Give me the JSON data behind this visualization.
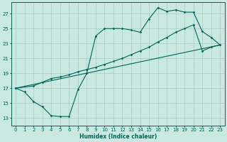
{
  "xlabel": "Humidex (Indice chaleur)",
  "bg_color": "#c8e8e0",
  "grid_color": "#a8cccc",
  "line_color": "#006655",
  "xlim": [
    -0.5,
    23.5
  ],
  "ylim": [
    12.0,
    28.5
  ],
  "yticks": [
    13,
    15,
    17,
    19,
    21,
    23,
    25,
    27
  ],
  "xticks": [
    0,
    1,
    2,
    3,
    4,
    5,
    6,
    7,
    8,
    9,
    10,
    11,
    12,
    13,
    14,
    15,
    16,
    17,
    18,
    19,
    20,
    21,
    22,
    23
  ],
  "curve1_x": [
    0,
    1,
    2,
    3,
    4,
    5,
    6,
    7,
    8,
    9,
    10,
    11,
    12,
    13,
    14,
    15,
    16,
    17,
    18,
    19,
    20,
    21,
    22,
    23
  ],
  "curve1_y": [
    17.0,
    16.5,
    15.2,
    14.5,
    13.3,
    13.2,
    13.2,
    16.8,
    19.0,
    24.0,
    25.0,
    25.0,
    25.0,
    24.8,
    24.5,
    26.3,
    27.8,
    27.3,
    27.5,
    27.2,
    27.2,
    24.6,
    23.8,
    22.8
  ],
  "curve2_x": [
    0,
    2,
    3,
    4,
    5,
    6,
    7,
    8,
    9,
    10,
    11,
    12,
    13,
    14,
    15,
    16,
    17,
    18,
    19,
    20,
    21,
    22,
    23
  ],
  "curve2_y": [
    17.0,
    17.3,
    17.8,
    18.3,
    18.5,
    18.8,
    19.2,
    19.5,
    19.8,
    20.2,
    20.6,
    21.0,
    21.5,
    22.0,
    22.5,
    23.2,
    23.8,
    24.5,
    25.0,
    25.5,
    22.0,
    22.5,
    22.8
  ],
  "line3_x": [
    0,
    23
  ],
  "line3_y": [
    17.0,
    22.8
  ]
}
